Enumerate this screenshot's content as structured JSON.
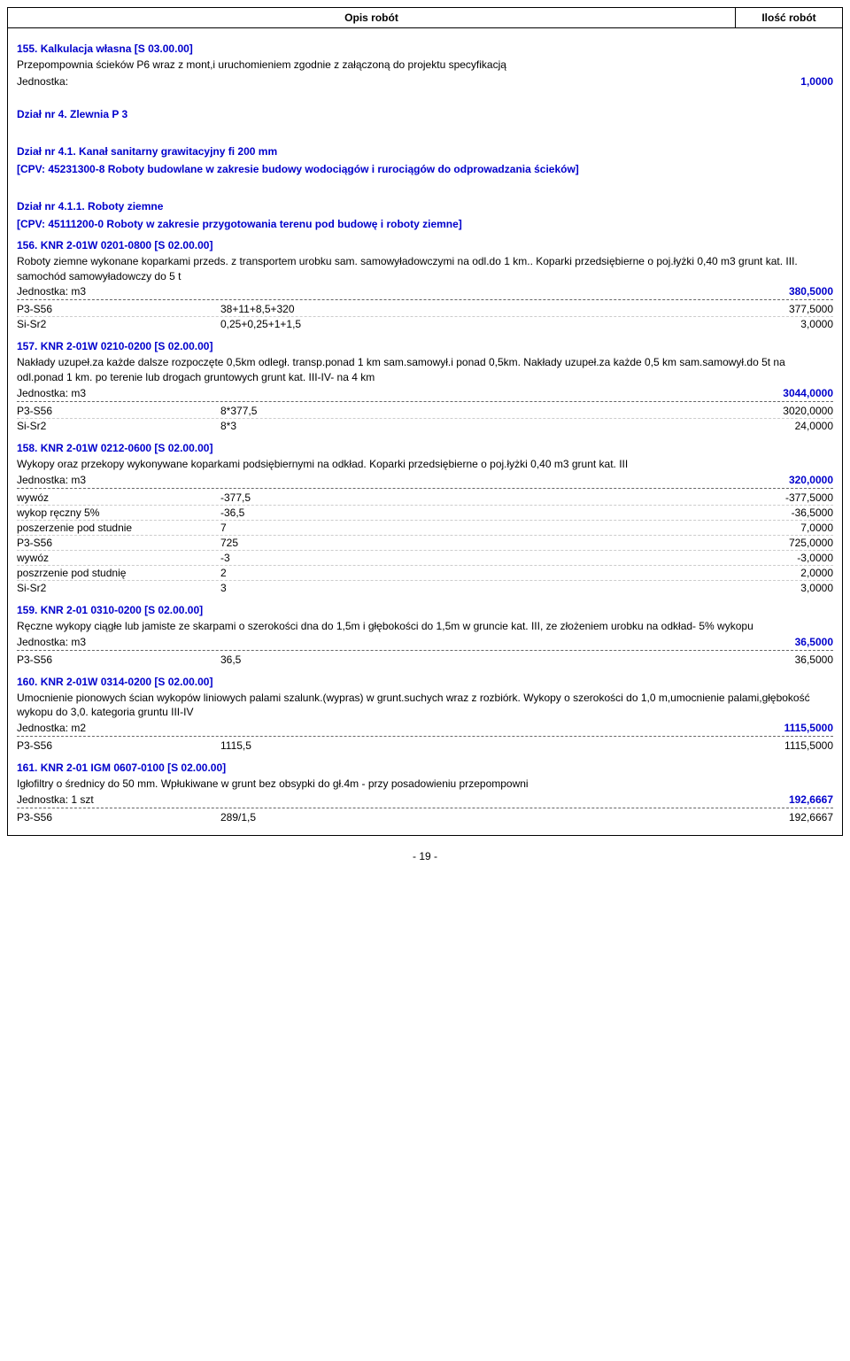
{
  "header": {
    "left": "Opis robót",
    "right": "Ilość robót"
  },
  "item155": {
    "title": "155. Kalkulacja własna   [S 03.00.00]",
    "desc": "Przepompownia ścieków P6 wraz z mont,i uruchomieniem zgodnie z załączoną do projektu specyfikacją",
    "unit_label": "Jednostka:",
    "unit_value": "1,0000"
  },
  "dzial4": {
    "title": "Dział nr 4. Zlewnia P 3"
  },
  "dzial41": {
    "title": "Dział nr 4.1. Kanał sanitarny grawitacyjny fi 200 mm",
    "cpv": "[CPV: 45231300-8 Roboty budowlane w zakresie budowy wodociągów i rurociągów do odprowadzania ścieków]"
  },
  "dzial411": {
    "title": "Dział nr 4.1.1. Roboty ziemne",
    "cpv": "[CPV: 45111200-0 Roboty w zakresie przygotowania terenu pod budowę i roboty ziemne]"
  },
  "item156": {
    "title": "156. KNR 2-01W  0201-0800   [S 02.00.00]",
    "desc": "Roboty ziemne wykonane koparkami przeds. z transportem urobku sam. samowyładowczymi na odl.do 1 km.. Koparki przedsiębierne o poj.łyżki 0,40 m3 grunt kat. III. samochód samowyładowczy do 5 t",
    "unit_label": "Jednostka: m3",
    "unit_value": "380,5000",
    "rows": [
      {
        "label": "P3-S56",
        "expr": "38+11+8,5+320",
        "val": "377,5000"
      },
      {
        "label": "Si-Sr2",
        "expr": "0,25+0,25+1+1,5",
        "val": "3,0000"
      }
    ]
  },
  "item157": {
    "title": "157. KNR 2-01W  0210-0200   [S 02.00.00]",
    "desc": "Nakłady uzupeł.za każde dalsze rozpoczęte 0,5km odległ. transp.ponad 1 km sam.samowył.i ponad 0,5km. Nakłady uzupeł.za każde 0,5 km sam.samowył.do 5t na odl.ponad 1 km. po terenie lub drogach gruntowych  grunt kat. III-IV- na 4 km",
    "unit_label": "Jednostka: m3",
    "unit_value": "3044,0000",
    "rows": [
      {
        "label": "P3-S56",
        "expr": "8*377,5",
        "val": "3020,0000"
      },
      {
        "label": "Si-Sr2",
        "expr": "8*3",
        "val": "24,0000"
      }
    ]
  },
  "item158": {
    "title": "158. KNR 2-01W  0212-0600   [S 02.00.00]",
    "desc": "Wykopy oraz przekopy wykonywane koparkami podsiębiernymi na odkład. Koparki przedsiębierne o poj.łyżki  0,40 m3 grunt kat. III",
    "unit_label": "Jednostka: m3",
    "unit_value": "320,0000",
    "rows": [
      {
        "label": "wywóz",
        "expr": "-377,5",
        "val": "-377,5000"
      },
      {
        "label": "wykop ręczny 5%",
        "expr": "-36,5",
        "val": "-36,5000"
      },
      {
        "label": "poszerzenie pod studnie",
        "expr": "7",
        "val": "7,0000"
      },
      {
        "label": "P3-S56",
        "expr": "725",
        "val": "725,0000"
      },
      {
        "label": "wywóz",
        "expr": "-3",
        "val": "-3,0000"
      },
      {
        "label": "poszrzenie pod studnię",
        "expr": "2",
        "val": "2,0000"
      },
      {
        "label": "Si-Sr2",
        "expr": "3",
        "val": "3,0000"
      }
    ]
  },
  "item159": {
    "title": "159. KNR 2-01  0310-0200   [S 02.00.00]",
    "desc": "Ręczne wykopy ciągłe lub jamiste ze skarpami o szerokości dna do 1,5m i głębokości do 1,5m w gruncie kat. III, ze złożeniem urobku na odkład- 5% wykopu",
    "unit_label": "Jednostka: m3",
    "unit_value": "36,5000",
    "rows": [
      {
        "label": "P3-S56",
        "expr": "36,5",
        "val": "36,5000"
      }
    ]
  },
  "item160": {
    "title": "160. KNR 2-01W  0314-0200   [S 02.00.00]",
    "desc": "Umocnienie pionowych ścian wykopów liniowych palami szalunk.(wypras) w grunt.suchych wraz z rozbiórk. Wykopy o szerokości do 1,0 m,umocnienie palami,głębokość wykopu do 3,0. kategoria gruntu  III-IV",
    "unit_label": "Jednostka: m2",
    "unit_value": "1115,5000",
    "rows": [
      {
        "label": "P3-S56",
        "expr": "1115,5",
        "val": "1115,5000"
      }
    ]
  },
  "item161": {
    "title": "161. KNR 2-01 IGM  0607-0100   [S 02.00.00]",
    "desc": "Igłofiltry o średnicy do  50 mm. Wpłukiwane w grunt bez obsypki do gł.4m - przy posadowieniu przepompowni",
    "unit_label": "Jednostka: 1 szt",
    "unit_value": "192,6667",
    "rows": [
      {
        "label": "P3-S56",
        "expr": "289/1,5",
        "val": "192,6667"
      }
    ]
  },
  "pagenum": "- 19 -"
}
